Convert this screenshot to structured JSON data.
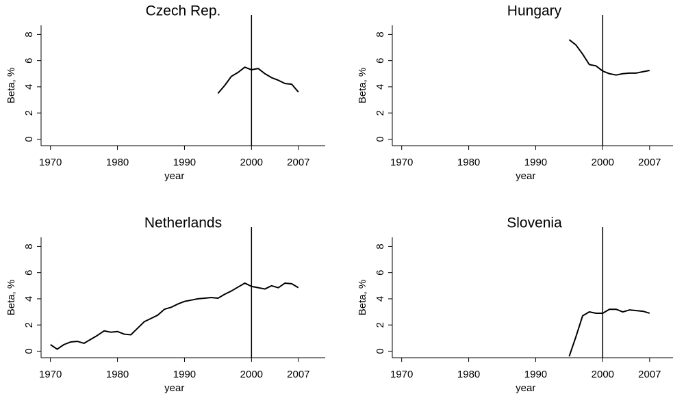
{
  "chart_data": [
    {
      "type": "line",
      "title": "Czech Rep.",
      "xlabel": "year",
      "ylabel": "Beta, %",
      "color": "#000000",
      "x": [
        1995,
        1996,
        1997,
        1998,
        1999,
        2000,
        2001,
        2002,
        2003,
        2004,
        2005,
        2006,
        2007
      ],
      "values": [
        3.5,
        4.1,
        4.8,
        5.1,
        5.5,
        5.3,
        5.4,
        5.0,
        4.7,
        4.5,
        4.25,
        4.2,
        3.6
      ],
      "xlim": [
        1968.6,
        2011
      ],
      "xticks": [
        1970,
        1980,
        1990,
        2000,
        2007
      ],
      "ylim": [
        -0.5,
        8.7
      ],
      "yticks": [
        0,
        2,
        4,
        6,
        8
      ],
      "xline": 2000
    },
    {
      "type": "line",
      "title": "Hungary",
      "xlabel": "year",
      "ylabel": "Beta, %",
      "color": "#000000",
      "x": [
        1995,
        1996,
        1997,
        1998,
        1999,
        2000,
        2001,
        2002,
        2003,
        2004,
        2005,
        2006,
        2007
      ],
      "values": [
        7.6,
        7.2,
        6.5,
        5.7,
        5.6,
        5.2,
        5.0,
        4.9,
        5.0,
        5.05,
        5.05,
        5.15,
        5.25
      ],
      "xlim": [
        1968.6,
        2011
      ],
      "xticks": [
        1970,
        1980,
        1990,
        2000,
        2007
      ],
      "ylim": [
        -0.5,
        8.7
      ],
      "yticks": [
        0,
        2,
        4,
        6,
        8
      ],
      "xline": 2000
    },
    {
      "type": "line",
      "title": "Netherlands",
      "xlabel": "year",
      "ylabel": "Beta, %",
      "color": "#000000",
      "x": [
        1970,
        1971,
        1972,
        1973,
        1974,
        1975,
        1976,
        1977,
        1978,
        1979,
        1980,
        1981,
        1982,
        1983,
        1984,
        1985,
        1986,
        1987,
        1988,
        1989,
        1990,
        1991,
        1992,
        1993,
        1994,
        1995,
        1996,
        1997,
        1998,
        1999,
        2000,
        2001,
        2002,
        2003,
        2004,
        2005,
        2006,
        2007
      ],
      "values": [
        0.5,
        0.15,
        0.5,
        0.7,
        0.75,
        0.6,
        0.9,
        1.2,
        1.55,
        1.45,
        1.5,
        1.3,
        1.25,
        1.75,
        2.25,
        2.5,
        2.75,
        3.2,
        3.35,
        3.6,
        3.8,
        3.9,
        4.0,
        4.05,
        4.1,
        4.05,
        4.35,
        4.6,
        4.9,
        5.2,
        4.95,
        4.85,
        4.75,
        5.0,
        4.85,
        5.2,
        5.15,
        4.85
      ],
      "xlim": [
        1968.6,
        2011
      ],
      "xticks": [
        1970,
        1980,
        1990,
        2000,
        2007
      ],
      "ylim": [
        -0.5,
        8.7
      ],
      "yticks": [
        0,
        2,
        4,
        6,
        8
      ],
      "xline": 2000
    },
    {
      "type": "line",
      "title": "Slovenia",
      "xlabel": "year",
      "ylabel": "Beta, %",
      "color": "#000000",
      "x": [
        1995,
        1996,
        1997,
        1998,
        1999,
        2000,
        2001,
        2002,
        2003,
        2004,
        2005,
        2006,
        2007
      ],
      "values": [
        -0.4,
        1.1,
        2.7,
        3.0,
        2.9,
        2.9,
        3.2,
        3.2,
        3.0,
        3.15,
        3.1,
        3.05,
        2.9
      ],
      "xlim": [
        1968.6,
        2011
      ],
      "xticks": [
        1970,
        1980,
        1990,
        2000,
        2007
      ],
      "ylim": [
        -0.5,
        8.7
      ],
      "yticks": [
        0,
        2,
        4,
        6,
        8
      ],
      "xline": 2000
    }
  ]
}
